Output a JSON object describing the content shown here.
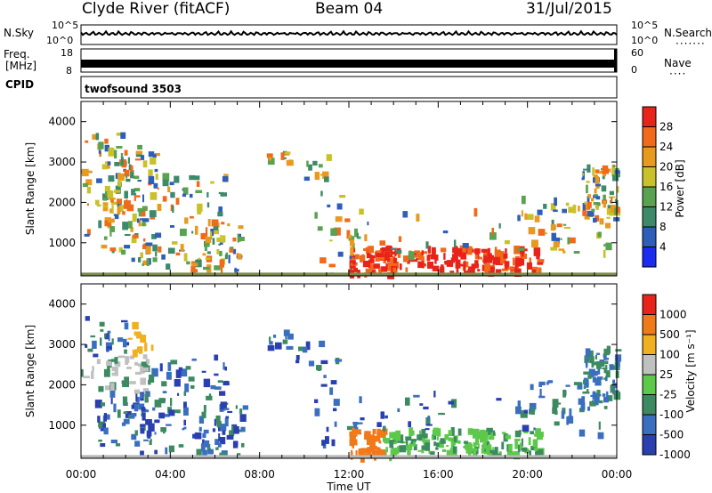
{
  "header": {
    "station": "Clyde River (fitACF)",
    "beam": "Beam 04",
    "date": "31/Jul/2015"
  },
  "nsky_panel": {
    "left_label": "N.Sky",
    "right_label": "N.Search",
    "tick_top": "10^5",
    "tick_bottom": "10^0",
    "right_tick_top": "10^5",
    "right_tick_bottom": "10^0"
  },
  "freq_panel": {
    "left_label_1": "Freq.",
    "left_label_2": "[MHz]",
    "tick_top": "18",
    "tick_bottom": "8",
    "right_label": "Nave",
    "right_tick_top": "60",
    "right_tick_bottom": "0"
  },
  "cpid_panel": {
    "left_label": "CPID",
    "program": "twofsound 3503"
  },
  "chart_data": [
    {
      "type": "heatmap",
      "ylabel": "Slant Range [km]",
      "yticks": [
        "1000",
        "2000",
        "3000",
        "4000"
      ],
      "ylim": [
        180,
        4500
      ],
      "colorbar_label": "Power [dB]",
      "colorbar_ticks": [
        "4",
        "8",
        "12",
        "16",
        "20",
        "24",
        "28"
      ],
      "colorbar_colors": [
        "#1a2cf0",
        "#2e5fb8",
        "#3d8a6a",
        "#59a24f",
        "#c9c12a",
        "#e89a1e",
        "#f06a1a",
        "#e8231a"
      ]
    },
    {
      "type": "heatmap",
      "ylabel": "Slant Range [km]",
      "yticks": [
        "1000",
        "2000",
        "3000",
        "4000"
      ],
      "ylim": [
        180,
        4500
      ],
      "colorbar_label": "Velocity [m s⁻¹]",
      "colorbar_ticks": [
        "1000",
        "500",
        "100",
        "25",
        "-25",
        "-100",
        "-500",
        "-1000"
      ],
      "colorbar_colors": [
        "#2a3fb0",
        "#3a6fbf",
        "#3c8a60",
        "#5cc94a",
        "#c0c0c0",
        "#f0b020",
        "#f07a1a",
        "#e8231a"
      ]
    }
  ],
  "time_axis": {
    "ticks": [
      "00:00",
      "04:00",
      "08:00",
      "12:00",
      "16:00",
      "20:00",
      "00:00"
    ],
    "label": "Time UT",
    "range_hours": [
      0,
      24
    ]
  }
}
